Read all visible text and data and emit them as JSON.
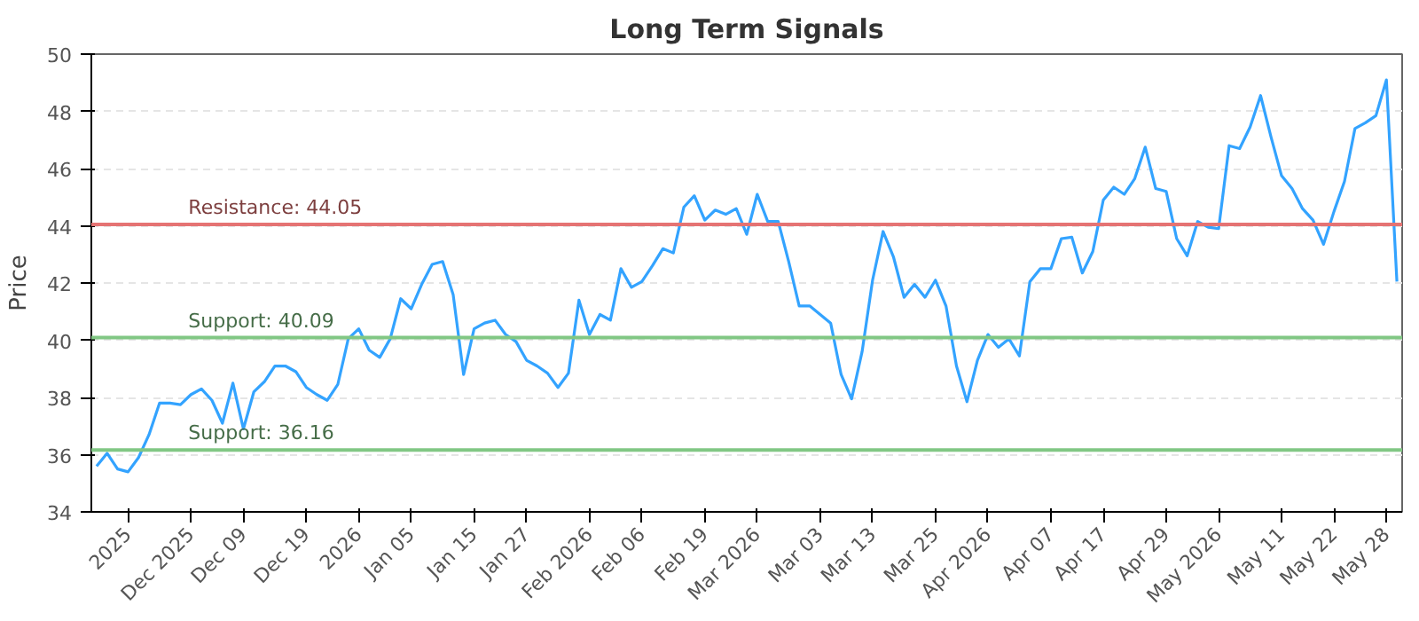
{
  "chart_data": {
    "type": "line",
    "title": "Long Term Signals",
    "ylabel": "Price",
    "categories": [
      null,
      null,
      null,
      "2025",
      null,
      null,
      null,
      null,
      null,
      "Dec 2025",
      null,
      null,
      null,
      null,
      "Dec 09",
      null,
      null,
      null,
      null,
      null,
      "Dec 19",
      null,
      null,
      null,
      null,
      "2026",
      null,
      null,
      null,
      null,
      "Jan 05",
      null,
      null,
      null,
      null,
      null,
      "Jan 15",
      null,
      null,
      null,
      null,
      "Jan 27",
      null,
      null,
      null,
      null,
      null,
      "Feb 2026",
      null,
      null,
      null,
      null,
      "Feb 06",
      null,
      null,
      null,
      null,
      null,
      "Feb 19",
      null,
      null,
      null,
      null,
      "Mar 2026",
      null,
      null,
      null,
      null,
      null,
      "Mar 03",
      null,
      null,
      null,
      null,
      "Mar 13",
      null,
      null,
      null,
      null,
      null,
      "Mar 25",
      null,
      null,
      null,
      null,
      "Apr 2026",
      null,
      null,
      null,
      null,
      null,
      "Apr 07",
      null,
      null,
      null,
      null,
      "Apr 17",
      null,
      null,
      null,
      null,
      null,
      "Apr 29",
      null,
      null,
      null,
      null,
      "May 2026",
      null,
      null,
      null,
      null,
      null,
      "May 11",
      null,
      null,
      null,
      null,
      "May 22",
      null,
      null,
      null,
      null,
      "May 28",
      null
    ],
    "series": [
      {
        "color": "#33a3ff",
        "values": [
          35.6,
          36.05,
          35.5,
          35.4,
          35.9,
          36.7,
          37.8,
          37.8,
          37.75,
          38.1,
          38.3,
          37.9,
          37.1,
          38.5,
          36.9,
          38.2,
          38.55,
          39.1,
          39.1,
          38.9,
          38.35,
          38.1,
          37.9,
          38.45,
          40.05,
          40.4,
          39.65,
          39.4,
          40.05,
          41.45,
          41.1,
          41.95,
          42.65,
          42.75,
          41.6,
          38.8,
          40.4,
          40.6,
          40.7,
          40.2,
          39.95,
          39.3,
          39.1,
          38.85,
          38.35,
          38.85,
          41.4,
          40.2,
          40.9,
          40.7,
          42.5,
          41.85,
          42.05,
          42.6,
          43.2,
          43.05,
          44.65,
          45.05,
          44.2,
          44.55,
          44.4,
          44.6,
          43.7,
          45.1,
          44.15,
          44.15,
          42.75,
          41.2,
          41.2,
          40.9,
          40.6,
          38.8,
          37.95,
          39.6,
          42.1,
          43.8,
          42.9,
          41.5,
          41.95,
          41.5,
          42.1,
          41.2,
          39.1,
          37.85,
          39.3,
          40.2,
          39.75,
          40.05,
          39.45,
          42.05,
          42.5,
          42.5,
          43.55,
          43.6,
          42.35,
          43.1,
          44.9,
          45.35,
          45.1,
          45.65,
          46.75,
          45.3,
          45.2,
          43.55,
          42.95,
          44.15,
          43.95,
          43.9,
          46.8,
          46.7,
          47.45,
          48.55,
          47.1,
          45.75,
          45.3,
          44.6,
          44.2,
          43.35,
          44.5,
          45.55,
          47.4,
          47.6,
          47.85,
          49.1,
          42.05
        ]
      }
    ],
    "ylim": [
      34,
      50
    ],
    "yticks": [
      34,
      36,
      38,
      40,
      42,
      44,
      46,
      48,
      50
    ],
    "grid": "y",
    "marker": "none",
    "line_style": "solid",
    "ref_lines": [
      {
        "axis": "y",
        "value": 44.05,
        "label": "Resistance: 44.05",
        "color": "#e57373"
      },
      {
        "axis": "y",
        "value": 40.09,
        "label": "Support: 40.09",
        "color": "#81c784"
      },
      {
        "axis": "y",
        "value": 36.16,
        "label": "Support: 36.16",
        "color": "#81c784"
      }
    ]
  }
}
